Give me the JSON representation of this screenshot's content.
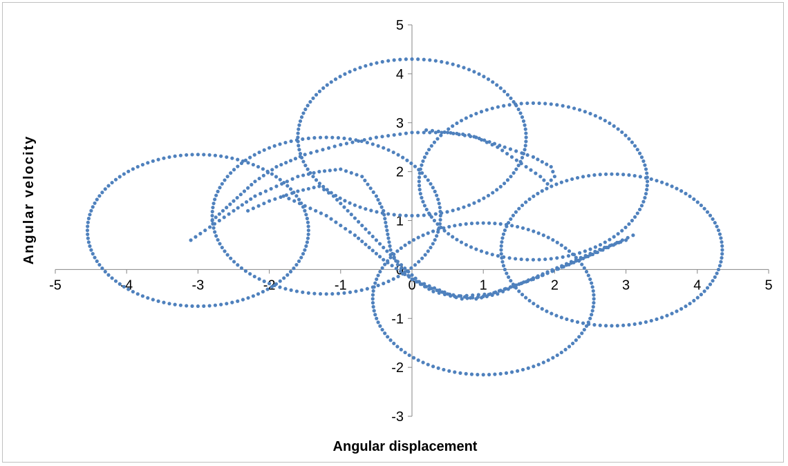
{
  "chart_data": {
    "type": "scatter",
    "title": "",
    "xlabel": "Angular displacement",
    "ylabel": "Angular velocity",
    "xlim": [
      -5,
      5
    ],
    "ylim": [
      -3,
      5
    ],
    "x_ticks": [
      -5,
      -4,
      -3,
      -2,
      -1,
      0,
      1,
      2,
      3,
      4,
      5
    ],
    "y_ticks": [
      -3,
      -2,
      -1,
      0,
      1,
      2,
      3,
      4,
      5
    ],
    "grid": false,
    "legend": "none",
    "marker_color": "#4f81bd",
    "circles": [
      {
        "cx": 0.0,
        "cy": 2.7,
        "r": 1.6
      },
      {
        "cx": -1.2,
        "cy": 1.1,
        "r": 1.6
      },
      {
        "cx": -3.0,
        "cy": 0.8,
        "r": 1.55
      },
      {
        "cx": 1.0,
        "cy": -0.6,
        "r": 1.55
      },
      {
        "cx": 1.7,
        "cy": 1.8,
        "r": 1.6
      },
      {
        "cx": 2.8,
        "cy": 0.4,
        "r": 1.55
      }
    ],
    "trajectory": [
      [
        -3.1,
        0.6
      ],
      [
        -2.9,
        0.8
      ],
      [
        -2.7,
        1.0
      ],
      [
        -2.5,
        1.2
      ],
      [
        -2.2,
        1.5
      ],
      [
        -1.9,
        1.7
      ],
      [
        -1.6,
        1.9
      ],
      [
        -1.3,
        2.0
      ],
      [
        -1.0,
        2.05
      ],
      [
        -0.7,
        1.9
      ],
      [
        -0.5,
        1.5
      ],
      [
        -0.4,
        1.2
      ],
      [
        -0.35,
        0.8
      ],
      [
        -0.3,
        0.4
      ],
      [
        -0.2,
        0.1
      ],
      [
        0.0,
        -0.2
      ],
      [
        0.3,
        -0.45
      ],
      [
        0.7,
        -0.6
      ],
      [
        1.0,
        -0.55
      ],
      [
        1.3,
        -0.4
      ],
      [
        1.7,
        -0.2
      ],
      [
        2.1,
        0.05
      ],
      [
        2.5,
        0.3
      ],
      [
        2.8,
        0.5
      ],
      [
        3.1,
        0.7
      ],
      [
        -2.8,
        1.0
      ],
      [
        -2.5,
        1.4
      ],
      [
        -2.2,
        1.8
      ],
      [
        -1.9,
        2.1
      ],
      [
        -1.5,
        2.35
      ],
      [
        -1.0,
        2.55
      ],
      [
        -0.5,
        2.7
      ],
      [
        0.0,
        2.8
      ],
      [
        0.5,
        2.8
      ],
      [
        0.9,
        2.7
      ],
      [
        1.2,
        2.5
      ],
      [
        1.4,
        2.3
      ],
      [
        1.6,
        2.1
      ],
      [
        1.8,
        1.9
      ],
      [
        1.9,
        1.75
      ],
      [
        2.0,
        1.9
      ],
      [
        1.95,
        2.1
      ],
      [
        1.7,
        2.3
      ],
      [
        1.3,
        2.5
      ],
      [
        0.8,
        2.75
      ],
      [
        0.2,
        2.85
      ],
      [
        -1.8,
        1.5
      ],
      [
        -1.5,
        1.3
      ],
      [
        -1.2,
        1.1
      ],
      [
        -1.0,
        0.9
      ],
      [
        -0.8,
        0.7
      ],
      [
        -0.6,
        0.45
      ],
      [
        -0.4,
        0.2
      ],
      [
        -0.1,
        -0.1
      ],
      [
        0.2,
        -0.35
      ],
      [
        0.5,
        -0.5
      ],
      [
        0.9,
        -0.6
      ],
      [
        1.2,
        -0.5
      ],
      [
        1.5,
        -0.3
      ],
      [
        1.9,
        -0.05
      ],
      [
        2.3,
        0.2
      ],
      [
        2.7,
        0.45
      ],
      [
        3.0,
        0.6
      ],
      [
        -2.3,
        1.2
      ],
      [
        -2.0,
        1.4
      ],
      [
        -1.6,
        1.6
      ],
      [
        -1.3,
        1.7
      ],
      [
        -1.1,
        1.5
      ],
      [
        -0.9,
        1.2
      ],
      [
        -0.7,
        0.9
      ],
      [
        -0.5,
        0.6
      ],
      [
        -0.3,
        0.3
      ],
      [
        0.1,
        -0.25
      ],
      [
        0.6,
        -0.55
      ],
      [
        1.1,
        -0.5
      ],
      [
        1.6,
        -0.25
      ],
      [
        2.2,
        0.1
      ],
      [
        2.6,
        0.35
      ],
      [
        2.9,
        0.55
      ]
    ]
  }
}
